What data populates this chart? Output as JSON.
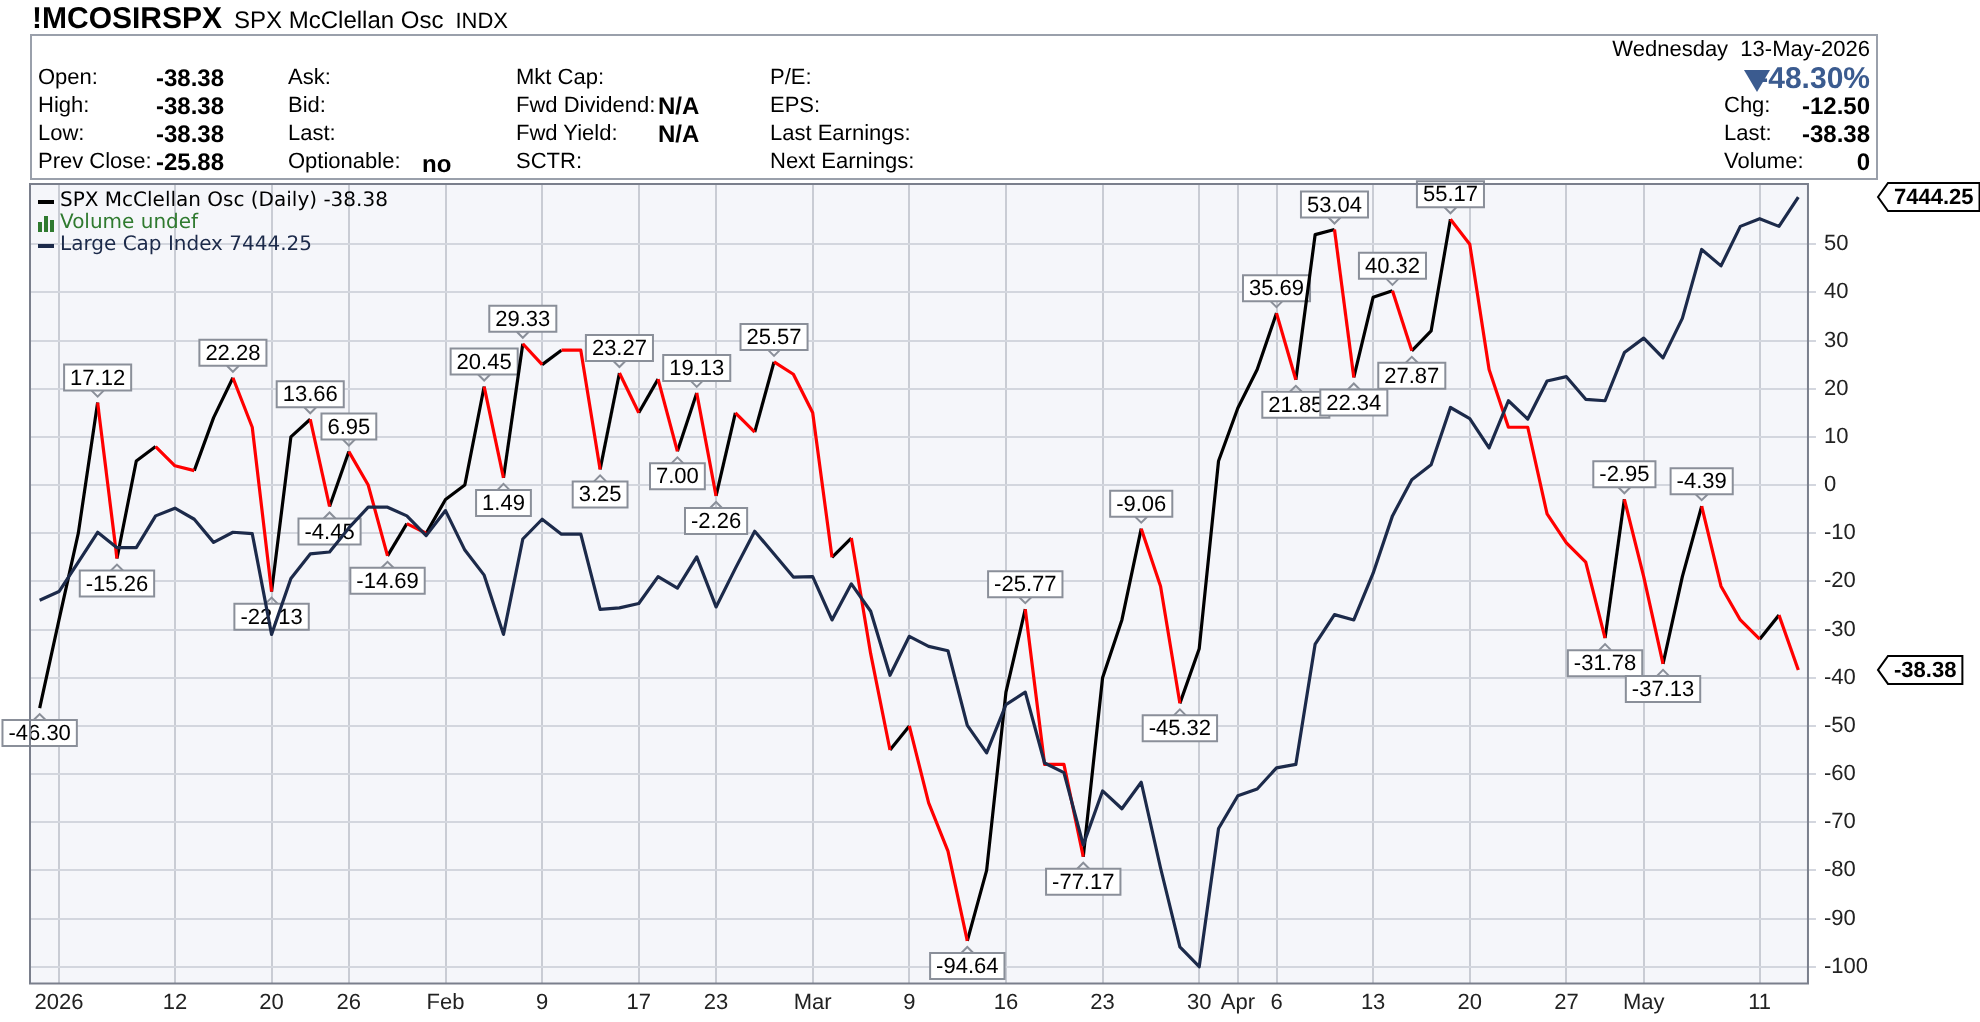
{
  "chart_data": {
    "type": "line",
    "title": "!MCOSIRSPX",
    "subtitle": "SPX McClellan Osc",
    "categories": [
      null,
      "2026",
      null,
      null,
      null,
      null,
      null,
      "12",
      null,
      null,
      null,
      null,
      "20",
      null,
      null,
      null,
      "26",
      null,
      null,
      null,
      null,
      "Feb",
      null,
      null,
      null,
      null,
      "9",
      null,
      null,
      null,
      null,
      "17",
      null,
      null,
      null,
      "23",
      null,
      null,
      null,
      null,
      "Mar",
      null,
      null,
      null,
      null,
      "9",
      null,
      null,
      null,
      null,
      "16",
      null,
      null,
      null,
      null,
      "23",
      null,
      null,
      null,
      null,
      "30",
      null,
      "Apr",
      null,
      "6",
      null,
      null,
      null,
      null,
      "13",
      null,
      null,
      null,
      null,
      "20",
      null,
      null,
      null,
      null,
      "27",
      null,
      null,
      null,
      "May",
      null,
      null,
      null,
      null,
      null,
      "11",
      null,
      null
    ],
    "series": [
      {
        "name": "SPX McClellan Osc (Daily) -38.38",
        "color": "#000000",
        "values": [
          -46.3,
          -28,
          -10,
          17.12,
          -15.26,
          5,
          8,
          null,
          3,
          14,
          22.28,
          null,
          -22.13,
          10,
          13.66,
          -4.45,
          6.95,
          null,
          -14.69,
          -8,
          -10,
          -3,
          0,
          20.45,
          1.49,
          29.33,
          25,
          28,
          null,
          3.25,
          23.27,
          15,
          22,
          7,
          19.13,
          -2.26,
          15,
          11,
          25.57,
          null,
          null,
          -15,
          -11,
          null,
          -55,
          -50,
          null,
          null,
          -94.64,
          -80,
          -43,
          -25.77,
          null,
          null,
          -77.17,
          -40,
          -28,
          -9.06,
          null,
          -45.32,
          -34,
          5,
          16,
          24,
          35.69,
          21.85,
          52,
          53.04,
          22.34,
          39,
          40.32,
          27.87,
          32,
          55.17,
          null,
          null,
          null,
          null,
          null,
          null,
          null,
          -31.78,
          -2.95,
          null,
          -37.13,
          -19,
          -4.39,
          null,
          null,
          -32,
          -27,
          null
        ],
        "value_labels": [
          "-46.30",
          null,
          null,
          "17.12",
          "-15.26",
          null,
          null,
          null,
          null,
          null,
          "22.28",
          null,
          "-22.13",
          null,
          "13.66",
          "-4.45",
          "6.95",
          null,
          "-14.69",
          null,
          null,
          null,
          null,
          "20.45",
          "1.49",
          "29.33",
          null,
          null,
          null,
          "3.25",
          "23.27",
          null,
          null,
          "7.00",
          "19.13",
          "-2.26",
          null,
          null,
          "25.57",
          null,
          null,
          null,
          null,
          null,
          null,
          null,
          null,
          null,
          "-94.64",
          null,
          null,
          "-25.77",
          null,
          null,
          "-77.17",
          null,
          null,
          "-9.06",
          null,
          "-45.32",
          null,
          null,
          null,
          null,
          "35.69",
          "21.85",
          null,
          "53.04",
          "22.34",
          null,
          "40.32",
          "27.87",
          null,
          "55.17",
          null,
          null,
          null,
          null,
          null,
          null,
          null,
          "-31.78",
          "-2.95",
          null,
          "-37.13",
          null,
          "-4.39",
          null,
          null,
          null,
          null,
          null
        ]
      },
      {
        "color": "#ff0000",
        "values": [
          null,
          null,
          null,
          17.12,
          -15.26,
          null,
          8,
          4,
          3,
          null,
          22.28,
          12,
          -22.13,
          null,
          13.66,
          -4.45,
          6.95,
          0,
          -14.69,
          -8,
          -10,
          null,
          null,
          20.45,
          1.49,
          29.33,
          25,
          28,
          28,
          3.25,
          23.27,
          15,
          22,
          7,
          19.13,
          -2.26,
          15,
          11,
          25.57,
          23,
          15,
          -15,
          -11,
          -35,
          -55,
          -50,
          -66,
          -76,
          -94.64,
          null,
          null,
          -25.77,
          -58,
          -58,
          -77.17,
          null,
          null,
          -9.06,
          -21,
          -45.32,
          null,
          null,
          null,
          null,
          35.69,
          21.85,
          null,
          53.04,
          22.34,
          null,
          40.32,
          27.87,
          null,
          55.17,
          50,
          24,
          12,
          12,
          -6,
          -12,
          -16,
          -31.78,
          -2.95,
          -19,
          -37.13,
          null,
          -4.39,
          -21,
          -28,
          -32,
          -27,
          -38.38
        ]
      },
      {
        "name": "Large Cap Index 7444.25",
        "color": "#1c2a4a",
        "values": [
          -23.9,
          -22.1,
          -16,
          -9.8,
          -13,
          -13,
          -6.4,
          -4.8,
          -7.1,
          -11.9,
          -9.8,
          -10.1,
          -31,
          -19.4,
          -14.3,
          -13.9,
          -8.9,
          -4.6,
          -4.6,
          -6.4,
          -10.5,
          -5.3,
          -13.5,
          -18.7,
          -31,
          -11.2,
          -7.1,
          -10.2,
          -10.2,
          -25.8,
          -25.5,
          -24.6,
          -19,
          -21.4,
          -14.9,
          -25.3,
          -17.3,
          -9.6,
          -14.3,
          -19.1,
          -19,
          -28,
          -20.5,
          -26.2,
          -39.5,
          -31.4,
          -33.5,
          -34.4,
          -49.9,
          -55.6,
          -45.6,
          -43,
          -57.7,
          -59.7,
          -74.7,
          -63.5,
          -67.2,
          -61.7,
          -79.5,
          -95.9,
          -100,
          -71.3,
          -64.5,
          -63.1,
          -58.7,
          -58,
          -33,
          -26.9,
          -28,
          -18.3,
          -6.4,
          1.1,
          4.2,
          16.1,
          13.8,
          7.7,
          17.5,
          13.7,
          21.6,
          22.5,
          17.8,
          17.5,
          27.5,
          30.5,
          26.4,
          34.6,
          48.9,
          45.5,
          53.7,
          55.3,
          53.7,
          59.8
        ]
      }
    ],
    "ylim": [
      -103.5,
      62.5
    ],
    "yticks": [
      -100,
      -90,
      -80,
      -70,
      -60,
      -50,
      -40,
      -30,
      -20,
      -10,
      0,
      10,
      20,
      30,
      40,
      50
    ],
    "grid": true,
    "legend": "top left",
    "annotations": [
      "INDX",
      "Open:",
      "-38.38",
      "High:",
      "-38.38",
      "Low:",
      "-38.38",
      "Prev Close:",
      "-25.88",
      "Ask:",
      "Bid:",
      "Last:",
      "Optionable:",
      "no",
      "Mkt Cap:",
      "Fwd Dividend:",
      "N/A",
      "Fwd Yield:",
      "N/A",
      "SCTR:",
      "P/E:",
      "EPS:",
      "Last Earnings:",
      "Next Earnings:",
      "Wednesday  13-May-2026",
      "-48.30%",
      "Chg:",
      "-12.50",
      "Last:",
      "-38.38",
      "Volume:",
      "0",
      "Volume undef",
      "-38.38",
      "7444.25"
    ]
  }
}
